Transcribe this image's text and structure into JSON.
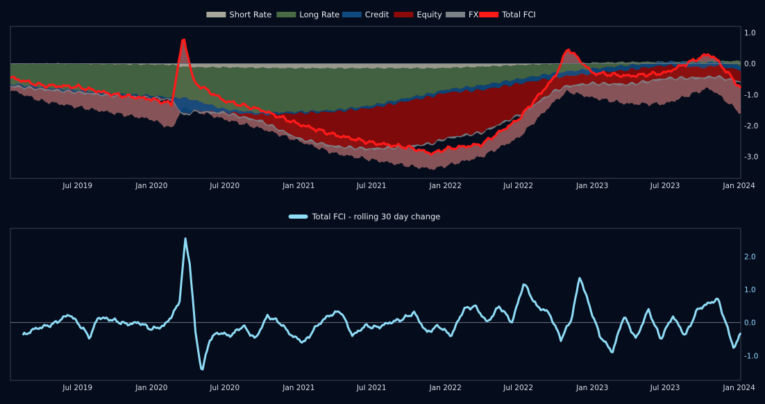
{
  "colors": {
    "background": "#050d1c",
    "frame": "#3a4252",
    "zero_line": "#6b7280"
  },
  "chart_data": [
    {
      "type": "area",
      "title": "",
      "x_ticks": [
        "Jul 2019",
        "Jan 2020",
        "Jul 2020",
        "Jan 2021",
        "Jul 2021",
        "Jan 2022",
        "Jul 2022",
        "Jan 2023",
        "Jul 2023",
        "Jan 2024"
      ],
      "y_ticks": [
        "1.0",
        "0.0",
        "-1.0",
        "-2.0",
        "-3.0"
      ],
      "ylim": [
        -3.7,
        1.2
      ],
      "x_range": [
        "2019-01-15",
        "2024-01-05"
      ],
      "stacked": true,
      "grid": false,
      "legend_position": "top-center",
      "x": [
        "2019-01-15",
        "2019-04-01",
        "2019-07-01",
        "2019-10-01",
        "2020-01-01",
        "2020-02-20",
        "2020-03-20",
        "2020-04-15",
        "2020-07-01",
        "2020-10-01",
        "2021-01-01",
        "2021-04-01",
        "2021-07-01",
        "2021-10-01",
        "2021-11-30",
        "2022-01-01",
        "2022-04-01",
        "2022-07-01",
        "2022-10-01",
        "2022-11-01",
        "2023-01-01",
        "2023-04-01",
        "2023-07-01",
        "2023-10-15",
        "2023-11-01",
        "2024-01-05"
      ],
      "series": [
        {
          "name": "Short Rate",
          "color": "#a8a89a",
          "values": [
            0.0,
            0.0,
            0.0,
            -0.02,
            -0.03,
            -0.04,
            -0.1,
            -0.12,
            -0.12,
            -0.14,
            -0.15,
            -0.15,
            -0.15,
            -0.15,
            -0.15,
            -0.14,
            -0.1,
            -0.05,
            0.0,
            0.0,
            0.03,
            0.05,
            0.06,
            0.07,
            0.08,
            0.08
          ]
        },
        {
          "name": "Long Rate",
          "color": "#496a45",
          "values": [
            -0.65,
            -0.75,
            -0.85,
            -0.95,
            -1.0,
            -1.05,
            -1.0,
            -1.05,
            -1.35,
            -1.45,
            -1.4,
            -1.35,
            -1.2,
            -0.95,
            -0.8,
            -0.7,
            -0.6,
            -0.45,
            -0.3,
            -0.25,
            -0.2,
            -0.1,
            0.0,
            -0.05,
            0.0,
            -0.15
          ]
        },
        {
          "name": "Credit",
          "color": "#0f4a80",
          "values": [
            -0.05,
            -0.05,
            -0.05,
            -0.05,
            -0.05,
            -0.05,
            -0.55,
            -0.35,
            -0.1,
            -0.05,
            -0.05,
            -0.05,
            -0.08,
            -0.1,
            -0.1,
            -0.1,
            -0.15,
            -0.15,
            -0.15,
            -0.15,
            -0.15,
            -0.15,
            -0.12,
            -0.15,
            -0.12,
            -0.15
          ]
        },
        {
          "name": "Equity",
          "color": "#8c0a0a",
          "values": [
            0.0,
            0.0,
            0.0,
            0.0,
            0.0,
            0.0,
            0.0,
            0.0,
            0.0,
            -0.2,
            -0.8,
            -1.1,
            -1.3,
            -1.45,
            -1.5,
            -1.45,
            -1.35,
            -1.0,
            -0.4,
            -0.3,
            -0.3,
            -0.45,
            -0.4,
            -0.3,
            -0.35,
            -0.35
          ]
        },
        {
          "name": "FX",
          "color": "#7d8288",
          "values": [
            -0.05,
            -0.05,
            -0.05,
            -0.05,
            -0.05,
            -0.05,
            -0.05,
            -0.05,
            -0.05,
            -0.05,
            -0.05,
            -0.05,
            -0.05,
            -0.05,
            -0.05,
            -0.05,
            -0.05,
            -0.05,
            -0.05,
            -0.05,
            -0.05,
            -0.05,
            -0.05,
            -0.05,
            -0.05,
            -0.05
          ]
        },
        {
          "name": "Total FCI",
          "color": "#ff1a1a",
          "type": "line",
          "values": [
            -0.45,
            -0.7,
            -0.75,
            -1.0,
            -1.15,
            -1.3,
            0.9,
            -0.6,
            -1.2,
            -1.5,
            -1.95,
            -2.3,
            -2.55,
            -2.7,
            -2.9,
            -2.75,
            -2.6,
            -1.8,
            -0.4,
            0.5,
            -0.3,
            -0.4,
            -0.3,
            0.3,
            0.2,
            -0.8
          ]
        }
      ],
      "lower_band": {
        "color": "#b26c6c",
        "values": [
          -0.85,
          -1.2,
          -1.4,
          -1.6,
          -1.8,
          -2.1,
          -1.4,
          -1.5,
          -1.8,
          -2.1,
          -2.5,
          -2.9,
          -3.1,
          -3.3,
          -3.4,
          -3.3,
          -3.0,
          -2.4,
          -1.2,
          -0.9,
          -1.1,
          -1.3,
          -1.3,
          -0.8,
          -0.9,
          -1.6
        ]
      }
    },
    {
      "type": "line",
      "title": "",
      "x_ticks": [
        "Jul 2019",
        "Jan 2020",
        "Jul 2020",
        "Jan 2021",
        "Jul 2021",
        "Jan 2022",
        "Jul 2022",
        "Jan 2023",
        "Jul 2023",
        "Jan 2024"
      ],
      "y_ticks": [
        "2.0",
        "1.0",
        "0.0",
        "-1.0"
      ],
      "ylim": [
        -1.75,
        2.85
      ],
      "x_range": [
        "2019-01-15",
        "2024-01-05"
      ],
      "grid": false,
      "legend_position": "top-center",
      "series": [
        {
          "name": "Total FCI - rolling 30 day change",
          "color": "#8fdcf7",
          "x": [
            "2019-02-15",
            "2019-03-15",
            "2019-05-01",
            "2019-06-10",
            "2019-07-01",
            "2019-08-01",
            "2019-08-20",
            "2019-09-20",
            "2019-11-01",
            "2019-12-01",
            "2020-01-01",
            "2020-02-01",
            "2020-02-20",
            "2020-03-10",
            "2020-03-25",
            "2020-04-05",
            "2020-04-20",
            "2020-05-05",
            "2020-05-25",
            "2020-06-15",
            "2020-07-15",
            "2020-08-15",
            "2020-09-15",
            "2020-10-15",
            "2020-11-15",
            "2020-12-15",
            "2021-01-15",
            "2021-02-15",
            "2021-03-15",
            "2021-04-15",
            "2021-05-15",
            "2021-06-15",
            "2021-07-15",
            "2021-08-15",
            "2021-09-15",
            "2021-10-15",
            "2021-11-15",
            "2021-12-15",
            "2022-01-15",
            "2022-02-15",
            "2022-03-15",
            "2022-04-15",
            "2022-05-15",
            "2022-06-15",
            "2022-07-15",
            "2022-08-15",
            "2022-09-15",
            "2022-10-15",
            "2022-11-10",
            "2022-12-01",
            "2022-12-25",
            "2023-01-20",
            "2023-02-20",
            "2023-03-20",
            "2023-04-20",
            "2023-05-20",
            "2023-06-20",
            "2023-07-20",
            "2023-08-20",
            "2023-09-20",
            "2023-10-20",
            "2023-11-10",
            "2023-12-01",
            "2023-12-20",
            "2024-01-05"
          ],
          "values": [
            -0.4,
            -0.2,
            -0.05,
            0.25,
            0.0,
            -0.45,
            0.15,
            0.1,
            -0.05,
            0.0,
            -0.2,
            -0.1,
            0.2,
            0.6,
            2.5,
            1.8,
            -0.4,
            -1.5,
            -0.5,
            -0.3,
            -0.4,
            -0.1,
            -0.5,
            0.2,
            0.0,
            -0.4,
            -0.6,
            -0.1,
            0.2,
            0.35,
            -0.4,
            -0.1,
            -0.15,
            0.0,
            0.1,
            0.3,
            -0.3,
            -0.1,
            -0.4,
            0.4,
            0.5,
            0.0,
            0.5,
            0.0,
            1.2,
            0.5,
            0.3,
            -0.5,
            0.1,
            1.4,
            0.5,
            -0.4,
            -0.9,
            0.2,
            -0.5,
            0.4,
            -0.5,
            0.2,
            -0.4,
            0.4,
            0.6,
            0.7,
            -0.1,
            -0.8,
            -0.3
          ]
        }
      ]
    }
  ]
}
